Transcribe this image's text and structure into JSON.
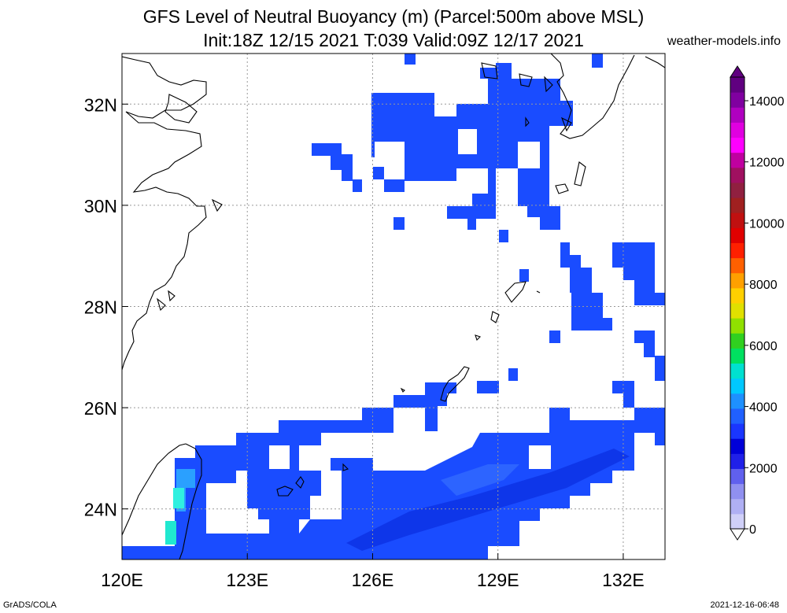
{
  "title": {
    "line1": "GFS Level of Neutral Buoyancy (m) (Parcel:500m above MSL)",
    "line2": "Init:18Z 12/15 2021 T:039 Valid:09Z 12/17 2021"
  },
  "site": "weather-models.info",
  "footer": {
    "left": "GrADS/COLA",
    "right": "2021-12-16-06:48"
  },
  "map": {
    "lon_range": [
      120,
      133
    ],
    "lat_range": [
      23,
      33
    ],
    "lon_ticks": [
      "120E",
      "123E",
      "126E",
      "129E",
      "132E"
    ],
    "lat_ticks": [
      "24N",
      "26N",
      "28N",
      "30N",
      "32N"
    ]
  },
  "colorbar": {
    "labels": [
      "0",
      "2000",
      "4000",
      "6000",
      "8000",
      "10000",
      "12000",
      "14000"
    ],
    "colors": [
      "#d0d0f8",
      "#b0b0f4",
      "#9090f0",
      "#6060ee",
      "#2020e8",
      "#0000d8",
      "#1a36ff",
      "#2060ff",
      "#1e90ff",
      "#00c8ff",
      "#00e0d0",
      "#00e060",
      "#30d020",
      "#90e000",
      "#e0e000",
      "#ffd000",
      "#ffa000",
      "#ff6000",
      "#ff2000",
      "#e00000",
      "#c01010",
      "#a02020",
      "#902040",
      "#a01060",
      "#c000a0",
      "#ff00ff",
      "#e000e0",
      "#b000c0",
      "#8000a0",
      "#600080"
    ]
  }
}
